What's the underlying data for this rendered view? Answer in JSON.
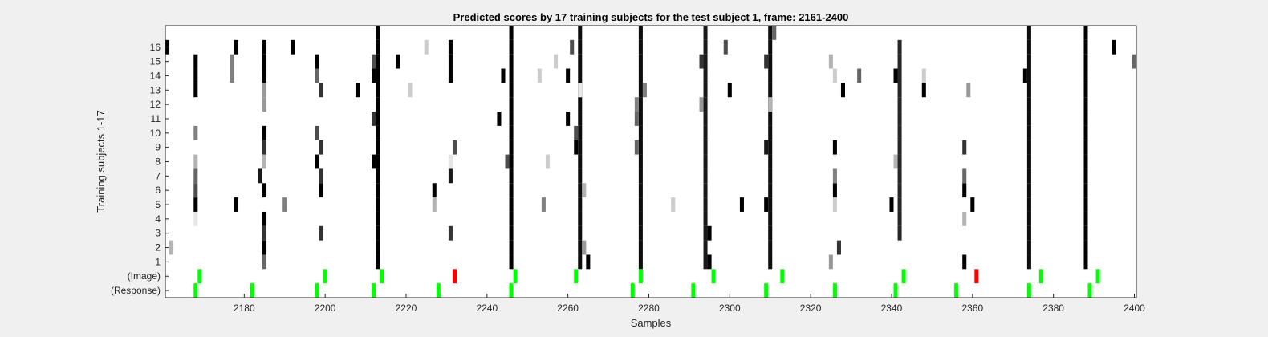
{
  "chart_data": {
    "type": "heatmap",
    "title": "Predicted scores by 17 training subjects for the test subject 1, frame: 2161-2400",
    "xlabel": "Samples",
    "ylabel": "Training subjects 1-17",
    "xlim": [
      2161,
      2400
    ],
    "x_ticks": [
      2180,
      2200,
      2220,
      2240,
      2260,
      2280,
      2300,
      2320,
      2340,
      2360,
      2380,
      2400
    ],
    "row_labels": [
      "(Response)",
      "(Image)",
      "1",
      "2",
      "3",
      "4",
      "5",
      "6",
      "7",
      "8",
      "9",
      "10",
      "11",
      "12",
      "13",
      "14",
      "15",
      "16",
      ""
    ],
    "value_scale": "grayscale, 1 = black (high score), 0 = white",
    "colors": {
      "background": "#ffffff",
      "figure": "#f0f0f0",
      "image_hit": "#00ff00",
      "image_miss": "#ff0000",
      "high_score": "#000000"
    },
    "response_events": [
      2168,
      2182,
      2198,
      2212,
      2228,
      2246,
      2276,
      2291,
      2309,
      2326,
      2341,
      2356,
      2374,
      2389
    ],
    "image_events": [
      {
        "x": 2169,
        "status": "hit"
      },
      {
        "x": 2200,
        "status": "hit"
      },
      {
        "x": 2214,
        "status": "hit"
      },
      {
        "x": 2232,
        "status": "miss"
      },
      {
        "x": 2247,
        "status": "hit"
      },
      {
        "x": 2262,
        "status": "hit"
      },
      {
        "x": 2278,
        "status": "hit"
      },
      {
        "x": 2296,
        "status": "hit"
      },
      {
        "x": 2313,
        "status": "hit"
      },
      {
        "x": 2343,
        "status": "hit"
      },
      {
        "x": 2361,
        "status": "miss"
      },
      {
        "x": 2377,
        "status": "hit"
      },
      {
        "x": 2391,
        "status": "hit"
      }
    ],
    "vertical_runs": [
      {
        "x": 2213,
        "from": 1,
        "to": 17,
        "value": 1.0
      },
      {
        "x": 2246,
        "from": 1,
        "to": 17,
        "value": 1.0
      },
      {
        "x": 2263,
        "from": 1,
        "to": 17,
        "value": 0.95
      },
      {
        "x": 2278,
        "from": 1,
        "to": 17,
        "value": 0.95
      },
      {
        "x": 2294,
        "from": 1,
        "to": 17,
        "value": 0.9
      },
      {
        "x": 2310,
        "from": 1,
        "to": 17,
        "value": 0.95
      },
      {
        "x": 2342,
        "from": 3,
        "to": 16,
        "value": 0.85
      },
      {
        "x": 2374,
        "from": 1,
        "to": 17,
        "value": 0.95
      },
      {
        "x": 2388,
        "from": 1,
        "to": 17,
        "value": 1.0
      }
    ],
    "scores": [
      {
        "x": 2168,
        "row": 5,
        "value": 1.0
      },
      {
        "x": 2168,
        "row": 6,
        "value": 0.7
      },
      {
        "x": 2168,
        "row": 7,
        "value": 0.6
      },
      {
        "x": 2168,
        "row": 8,
        "value": 0.3
      },
      {
        "x": 2168,
        "row": 10,
        "value": 0.5
      },
      {
        "x": 2168,
        "row": 13,
        "value": 1.0
      },
      {
        "x": 2168,
        "row": 14,
        "value": 1.0
      },
      {
        "x": 2168,
        "row": 15,
        "value": 1.0
      },
      {
        "x": 2168,
        "row": 4,
        "value": 0.1
      },
      {
        "x": 2162,
        "row": 2,
        "value": 0.3
      },
      {
        "x": 2161,
        "row": 16,
        "value": 1.0
      },
      {
        "x": 2177,
        "row": 14,
        "value": 0.5
      },
      {
        "x": 2177,
        "row": 15,
        "value": 0.5
      },
      {
        "x": 2178,
        "row": 5,
        "value": 1.0
      },
      {
        "x": 2178,
        "row": 16,
        "value": 1.0
      },
      {
        "x": 2185,
        "row": 1,
        "value": 0.6
      },
      {
        "x": 2185,
        "row": 2,
        "value": 1.0
      },
      {
        "x": 2185,
        "row": 3,
        "value": 0.8
      },
      {
        "x": 2185,
        "row": 4,
        "value": 1.0
      },
      {
        "x": 2185,
        "row": 6,
        "value": 1.0
      },
      {
        "x": 2184,
        "row": 7,
        "value": 0.9
      },
      {
        "x": 2185,
        "row": 8,
        "value": 0.3
      },
      {
        "x": 2185,
        "row": 9,
        "value": 0.8
      },
      {
        "x": 2185,
        "row": 10,
        "value": 1.0
      },
      {
        "x": 2185,
        "row": 12,
        "value": 0.4
      },
      {
        "x": 2185,
        "row": 13,
        "value": 0.4
      },
      {
        "x": 2185,
        "row": 14,
        "value": 1.0
      },
      {
        "x": 2185,
        "row": 15,
        "value": 1.0
      },
      {
        "x": 2185,
        "row": 16,
        "value": 1.0
      },
      {
        "x": 2190,
        "row": 5,
        "value": 0.5
      },
      {
        "x": 2192,
        "row": 16,
        "value": 1.0
      },
      {
        "x": 2199,
        "row": 3,
        "value": 0.8
      },
      {
        "x": 2199,
        "row": 6,
        "value": 1.0
      },
      {
        "x": 2199,
        "row": 7,
        "value": 0.8
      },
      {
        "x": 2198,
        "row": 8,
        "value": 1.0
      },
      {
        "x": 2199,
        "row": 9,
        "value": 0.8
      },
      {
        "x": 2198,
        "row": 10,
        "value": 0.7
      },
      {
        "x": 2199,
        "row": 13,
        "value": 0.8
      },
      {
        "x": 2198,
        "row": 14,
        "value": 0.6
      },
      {
        "x": 2198,
        "row": 15,
        "value": 1.0
      },
      {
        "x": 2208,
        "row": 13,
        "value": 1.0
      },
      {
        "x": 2212,
        "row": 8,
        "value": 1.0
      },
      {
        "x": 2212,
        "row": 11,
        "value": 0.8
      },
      {
        "x": 2212,
        "row": 14,
        "value": 1.0
      },
      {
        "x": 2212,
        "row": 15,
        "value": 0.7
      },
      {
        "x": 2218,
        "row": 15,
        "value": 1.0
      },
      {
        "x": 2221,
        "row": 13,
        "value": 0.2
      },
      {
        "x": 2225,
        "row": 16,
        "value": 0.2
      },
      {
        "x": 2227,
        "row": 5,
        "value": 0.3
      },
      {
        "x": 2227,
        "row": 6,
        "value": 1.0
      },
      {
        "x": 2231,
        "row": 3,
        "value": 0.8
      },
      {
        "x": 2231,
        "row": 7,
        "value": 0.9
      },
      {
        "x": 2231,
        "row": 8,
        "value": 0.1
      },
      {
        "x": 2232,
        "row": 9,
        "value": 0.7
      },
      {
        "x": 2231,
        "row": 14,
        "value": 1.0
      },
      {
        "x": 2231,
        "row": 15,
        "value": 1.0
      },
      {
        "x": 2231,
        "row": 16,
        "value": 1.0
      },
      {
        "x": 2243,
        "row": 11,
        "value": 1.0
      },
      {
        "x": 2245,
        "row": 8,
        "value": 0.7
      },
      {
        "x": 2244,
        "row": 14,
        "value": 1.0
      },
      {
        "x": 2253,
        "row": 14,
        "value": 0.2
      },
      {
        "x": 2254,
        "row": 5,
        "value": 0.5
      },
      {
        "x": 2255,
        "row": 8,
        "value": 0.2
      },
      {
        "x": 2257,
        "row": 15,
        "value": 0.2
      },
      {
        "x": 2260,
        "row": 11,
        "value": 1.0
      },
      {
        "x": 2260,
        "row": 14,
        "value": 1.0
      },
      {
        "x": 2261,
        "row": 16,
        "value": 0.7
      },
      {
        "x": 2262,
        "row": 9,
        "value": 1.0
      },
      {
        "x": 2262,
        "row": 10,
        "value": 0.7
      },
      {
        "x": 2264,
        "row": 2,
        "value": 0.4
      },
      {
        "x": 2264,
        "row": 6,
        "value": 0.3
      },
      {
        "x": 2263,
        "row": 13,
        "value": 0.1
      },
      {
        "x": 2265,
        "row": 1,
        "value": 1.0
      },
      {
        "x": 2277,
        "row": 9,
        "value": 0.6
      },
      {
        "x": 2277,
        "row": 11,
        "value": 0.6
      },
      {
        "x": 2277,
        "row": 12,
        "value": 0.5
      },
      {
        "x": 2279,
        "row": 13,
        "value": 0.5
      },
      {
        "x": 2286,
        "row": 5,
        "value": 0.2
      },
      {
        "x": 2293,
        "row": 12,
        "value": 0.4
      },
      {
        "x": 2293,
        "row": 15,
        "value": 0.8
      },
      {
        "x": 2295,
        "row": 1,
        "value": 1.0
      },
      {
        "x": 2295,
        "row": 3,
        "value": 1.0
      },
      {
        "x": 2299,
        "row": 16,
        "value": 0.7
      },
      {
        "x": 2300,
        "row": 13,
        "value": 1.0
      },
      {
        "x": 2303,
        "row": 5,
        "value": 1.0
      },
      {
        "x": 2309,
        "row": 5,
        "value": 1.0
      },
      {
        "x": 2309,
        "row": 9,
        "value": 0.9
      },
      {
        "x": 2309,
        "row": 15,
        "value": 0.8
      },
      {
        "x": 2310,
        "row": 12,
        "value": 0.3
      },
      {
        "x": 2311,
        "row": 17,
        "value": 0.6
      },
      {
        "x": 2325,
        "row": 1,
        "value": 0.4
      },
      {
        "x": 2326,
        "row": 5,
        "value": 0.2
      },
      {
        "x": 2326,
        "row": 6,
        "value": 1.0
      },
      {
        "x": 2326,
        "row": 7,
        "value": 0.5
      },
      {
        "x": 2326,
        "row": 9,
        "value": 1.0
      },
      {
        "x": 2326,
        "row": 14,
        "value": 0.2
      },
      {
        "x": 2325,
        "row": 15,
        "value": 0.3
      },
      {
        "x": 2327,
        "row": 2,
        "value": 0.8
      },
      {
        "x": 2328,
        "row": 13,
        "value": 1.0
      },
      {
        "x": 2332,
        "row": 14,
        "value": 0.6
      },
      {
        "x": 2340,
        "row": 5,
        "value": 1.0
      },
      {
        "x": 2341,
        "row": 8,
        "value": 0.3
      },
      {
        "x": 2341,
        "row": 14,
        "value": 1.0
      },
      {
        "x": 2348,
        "row": 13,
        "value": 1.0
      },
      {
        "x": 2348,
        "row": 14,
        "value": 0.2
      },
      {
        "x": 2358,
        "row": 1,
        "value": 1.0
      },
      {
        "x": 2358,
        "row": 4,
        "value": 0.3
      },
      {
        "x": 2358,
        "row": 6,
        "value": 1.0
      },
      {
        "x": 2358,
        "row": 7,
        "value": 0.6
      },
      {
        "x": 2358,
        "row": 9,
        "value": 0.8
      },
      {
        "x": 2359,
        "row": 13,
        "value": 0.4
      },
      {
        "x": 2360,
        "row": 5,
        "value": 1.0
      },
      {
        "x": 2373,
        "row": 14,
        "value": 1.0
      },
      {
        "x": 2395,
        "row": 16,
        "value": 1.0
      },
      {
        "x": 2400,
        "row": 15,
        "value": 0.6
      }
    ]
  }
}
